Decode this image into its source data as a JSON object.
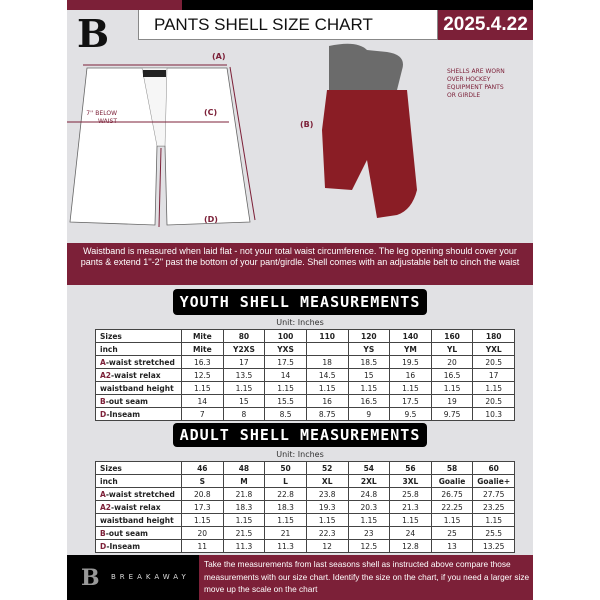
{
  "header": {
    "title": "PANTS SHELL SIZE CHART",
    "date": "2025.4.22",
    "logo": "B"
  },
  "diagram": {
    "label_a": "(A)",
    "label_b": "(B)",
    "label_c": "(C)",
    "label_d": "(D)",
    "below_waist": "7'' BELOW WAIST",
    "worn_note": "SHELLS ARE WORN OVER HOCKEY EQUIPMENT PANTS OR GIRDLE"
  },
  "info_band": "Waistband is measured when laid flat - not your total waist circumference. The leg opening should cover your pants & extend 1''-2'' past the bottom of your pant/girdle. Shell comes with an adjustable belt to cinch the waist",
  "youth": {
    "heading": "YOUTH SHELL MEASUREMENTS",
    "unit": "Unit: Inches",
    "rows": [
      [
        "Sizes",
        "Mite",
        "80",
        "100",
        "110",
        "120",
        "140",
        "160",
        "180"
      ],
      [
        "inch",
        "Mite",
        "Y2XS",
        "YXS",
        "",
        "YS",
        "YM",
        "YL",
        "YXL"
      ],
      [
        "A-waist stretched",
        "16.3",
        "17",
        "17.5",
        "18",
        "18.5",
        "19.5",
        "20",
        "20.5"
      ],
      [
        "A2-waist relax",
        "12.5",
        "13.5",
        "14",
        "14.5",
        "15",
        "16",
        "16.5",
        "17"
      ],
      [
        "waistband height",
        "1.15",
        "1.15",
        "1.15",
        "1.15",
        "1.15",
        "1.15",
        "1.15",
        "1.15"
      ],
      [
        "B-out seam",
        "14",
        "15",
        "15.5",
        "16",
        "16.5",
        "17.5",
        "19",
        "20.5"
      ],
      [
        "D-Inseam",
        "7",
        "8",
        "8.5",
        "8.75",
        "9",
        "9.5",
        "9.75",
        "10.3"
      ]
    ]
  },
  "adult": {
    "heading": "ADULT SHELL MEASUREMENTS",
    "unit": "Unit: Inches",
    "rows": [
      [
        "Sizes",
        "46",
        "48",
        "50",
        "52",
        "54",
        "56",
        "58",
        "60"
      ],
      [
        "inch",
        "S",
        "M",
        "L",
        "XL",
        "2XL",
        "3XL",
        "Goalie",
        "Goalie+"
      ],
      [
        "A-waist stretched",
        "20.8",
        "21.8",
        "22.8",
        "23.8",
        "24.8",
        "25.8",
        "26.75",
        "27.75"
      ],
      [
        "A2-waist relax",
        "17.3",
        "18.3",
        "18.3",
        "19.3",
        "20.3",
        "21.3",
        "22.25",
        "23.25"
      ],
      [
        "waistband height",
        "1.15",
        "1.15",
        "1.15",
        "1.15",
        "1.15",
        "1.15",
        "1.15",
        "1.15"
      ],
      [
        "B-out seam",
        "20",
        "21.5",
        "21",
        "22.3",
        "23",
        "24",
        "25",
        "25.5"
      ],
      [
        "D-Inseam",
        "11",
        "11.3",
        "11.3",
        "12",
        "12.5",
        "12.8",
        "13",
        "13.25"
      ]
    ]
  },
  "footer": {
    "brand": "BREAKAWAY",
    "logo": "B",
    "text": "Take the measurements from last seasons shell as instructed above compare those measurements  with our size chart. Identify the size on the chart, if you need a larger size move up the scale on the chart"
  },
  "colors": {
    "accent": "#7c2038",
    "background": "#e1e1e4"
  }
}
